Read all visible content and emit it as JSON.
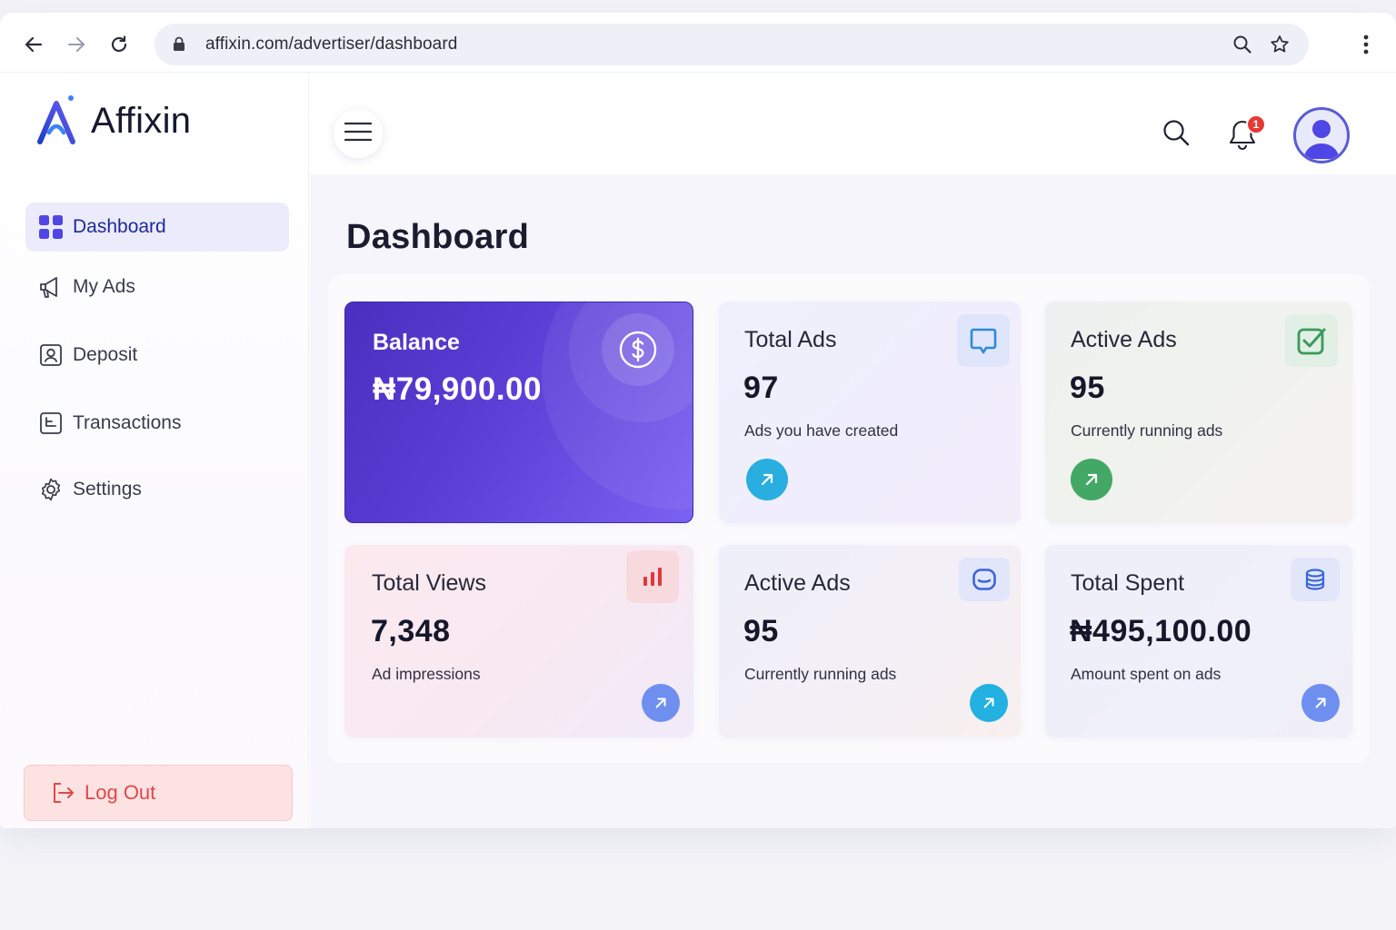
{
  "browser": {
    "url": "affixin.com/advertiser/dashboard"
  },
  "brand": {
    "name": "Affixin",
    "accent": "#4f46e5",
    "danger": "#e04848"
  },
  "sidebar": {
    "items": [
      {
        "label": "Dashboard",
        "icon": "grid-icon",
        "active": true
      },
      {
        "label": "My Ads",
        "icon": "megaphone-icon"
      },
      {
        "label": "Deposit",
        "icon": "deposit-icon"
      },
      {
        "label": "Transactions",
        "icon": "transactions-icon"
      },
      {
        "label": "Settings",
        "icon": "gear-icon"
      }
    ],
    "logout_label": "Log Out"
  },
  "header": {
    "notification_count": "1"
  },
  "main": {
    "title": "Dashboard",
    "cards": {
      "balance": {
        "title": "Balance",
        "value": "₦79,900.00"
      },
      "total_ads": {
        "title": "Total Ads",
        "value": "97",
        "sub": "Ads you have created"
      },
      "active_ads": {
        "title": "Active Ads",
        "value": "95",
        "sub": "Currently running ads"
      },
      "total_views": {
        "title": "Total Views",
        "value": "7,348",
        "sub": "Ad impressions"
      },
      "active_ads_2": {
        "title": "Active Ads",
        "value": "95",
        "sub": "Currently running ads"
      },
      "total_spent": {
        "title": "Total Spent",
        "value": "₦495,100.00",
        "sub": "Amount spent on ads"
      }
    }
  }
}
